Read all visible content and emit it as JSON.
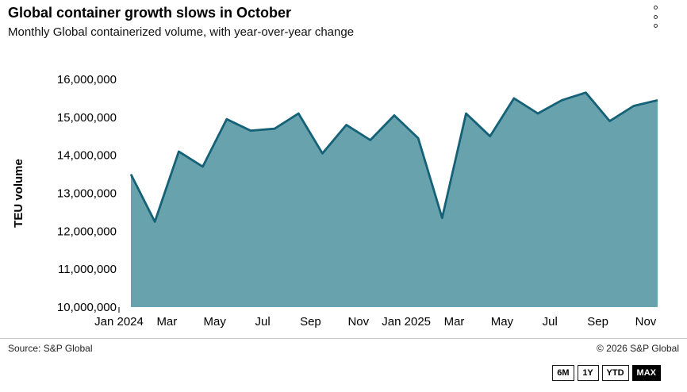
{
  "header": {
    "title": "Global container growth slows in October",
    "subtitle": "Monthly Global containerized volume, with year-over-year change",
    "menu_icon": "kebab-menu-icon"
  },
  "chart_data": {
    "type": "area",
    "title": "Global container growth slows in October",
    "subtitle": "Monthly Global containerized volume, with year-over-year change",
    "x": [
      "Jan 2024",
      "Feb 2024",
      "Mar 2024",
      "Apr 2024",
      "May 2024",
      "Jun 2024",
      "Jul 2024",
      "Aug 2024",
      "Sep 2024",
      "Oct 2024",
      "Nov 2024",
      "Dec 2024",
      "Jan 2025",
      "Feb 2025",
      "Mar 2025",
      "Apr 2025",
      "May 2025",
      "Jun 2025",
      "Jul 2025",
      "Aug 2025",
      "Sep 2025",
      "Oct 2025",
      "Nov 2025"
    ],
    "values": [
      13500000,
      12250000,
      14100000,
      13700000,
      14950000,
      14650000,
      14700000,
      15100000,
      14050000,
      14800000,
      14400000,
      15050000,
      14450000,
      12350000,
      15100000,
      14500000,
      15500000,
      15100000,
      15450000,
      15650000,
      14900000,
      15300000,
      15450000
    ],
    "series_name": "TEU volume",
    "xlabel": "",
    "ylabel": "TEU volume",
    "ylim": [
      10000000,
      16000000
    ],
    "ytick_step": 1000000,
    "xtick_labels": [
      "Jan 2024",
      "Mar",
      "May",
      "Jul",
      "Sep",
      "Nov",
      "Jan 2025",
      "Mar",
      "May",
      "Jul",
      "Sep",
      "Nov"
    ],
    "xtick_every": 2,
    "grid": false,
    "legend": "none",
    "fill_color": "#68a2ac",
    "line_color": "#156178"
  },
  "footer": {
    "source": "Source: S&P Global",
    "copyright": "© 2026 S&P Global",
    "range_buttons": [
      {
        "label": "6M",
        "active": false
      },
      {
        "label": "1Y",
        "active": false
      },
      {
        "label": "YTD",
        "active": false
      },
      {
        "label": "MAX",
        "active": true
      }
    ]
  }
}
